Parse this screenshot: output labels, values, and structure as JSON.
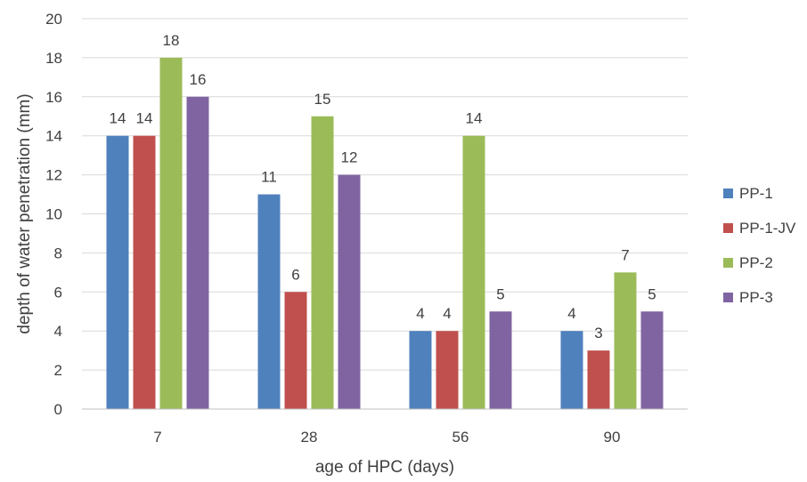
{
  "chart_data": {
    "type": "bar",
    "title": "",
    "xlabel": "age of HPC (days)",
    "ylabel": "depth of water penetration (mm)",
    "categories": [
      "7",
      "28",
      "56",
      "90"
    ],
    "ylim": [
      0,
      20
    ],
    "yticks": [
      0,
      2,
      4,
      6,
      8,
      10,
      12,
      14,
      16,
      18,
      20
    ],
    "grid": true,
    "legend_position": "right",
    "series": [
      {
        "name": "PP-1",
        "color": "#4f81bd",
        "values": [
          14,
          11,
          4,
          4
        ]
      },
      {
        "name": "PP-1-JV",
        "color": "#c0504d",
        "values": [
          14,
          6,
          4,
          3
        ]
      },
      {
        "name": "PP-2",
        "color": "#9bbb59",
        "values": [
          18,
          15,
          14,
          7
        ]
      },
      {
        "name": "PP-3",
        "color": "#8064a2",
        "values": [
          16,
          12,
          5,
          5
        ]
      }
    ]
  }
}
